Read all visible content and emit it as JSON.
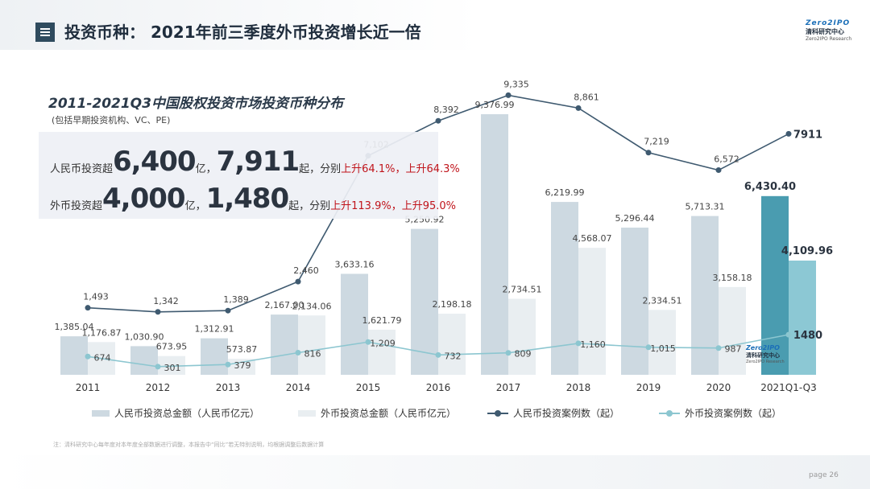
{
  "header": {
    "title": "投资币种： 2021年前三季度外币投资增长近一倍",
    "menu_icon": "menu-icon"
  },
  "logo": {
    "top": "Zero2IPO",
    "mid": "清科研究中心",
    "sub": "Zero2IPO Research"
  },
  "summary": {
    "line1": {
      "prefix": "人民币投资超",
      "big1": "6,400",
      "unit1": "亿，",
      "big2": "7,911",
      "mid": "起，分别",
      "red": "上升64.1%，上升64.3%"
    },
    "line2": {
      "prefix": "外币投资超",
      "big1": "4,000",
      "unit1": "亿，",
      "big2": "1,480",
      "mid": "起，分别",
      "red": "上升113.9%，上升95.0%"
    }
  },
  "footnote": "注：清科研究中心每年度对本年度全部数据进行调整，本报告中“同比”若无特别说明，均根据调整后数据计算",
  "page": "page 26",
  "colors": {
    "rmb_bar": "#cdd9e1",
    "fx_bar": "#e9eef1",
    "rmb_bar_highlight": "#4a9cb0",
    "fx_bar_highlight": "#8cc8d4",
    "rmb_line": "#3f5a70",
    "fx_line": "#8cc6d0",
    "highlight_text": "#c0141b"
  },
  "chart_data": {
    "type": "bar",
    "title": "2011-2021Q3中国股权投资市场投资币种分布",
    "subtitle": "(包括早期投资机构、VC、PE)",
    "categories": [
      "2011",
      "2012",
      "2013",
      "2014",
      "2015",
      "2016",
      "2017",
      "2018",
      "2019",
      "2020",
      "2021Q1-Q3"
    ],
    "series": [
      {
        "name": "人民币投资总金额（人民币亿元）",
        "kind": "bar",
        "values": [
          1385.04,
          1030.9,
          1312.91,
          2167.0,
          3633.16,
          5250.92,
          9376.99,
          6219.99,
          5296.44,
          5713.31,
          6430.4
        ],
        "labels": [
          "1,385.04",
          "1,030.90",
          "1,312.91",
          "2,167.00",
          "3,633.16",
          "5,250.92",
          "9,376.99",
          "6,219.99",
          "5,296.44",
          "5,713.31",
          "6,430.40"
        ]
      },
      {
        "name": "外币投资总金额（人民币亿元）",
        "kind": "bar",
        "values": [
          1176.87,
          673.95,
          573.87,
          2134.06,
          1621.79,
          2198.18,
          2734.51,
          4568.07,
          2334.51,
          3158.18,
          4109.96
        ],
        "labels": [
          "1,176.87",
          "673.95",
          "573.87",
          "2,134.06",
          "1,621.79",
          "2,198.18",
          "2,734.51",
          "4,568.07",
          "2,334.51",
          "3,158.18",
          "4,109.96"
        ]
      },
      {
        "name": "人民币投资案例数（起）",
        "kind": "line",
        "values": [
          1493,
          1342,
          1389,
          2460,
          7102,
          8392,
          9335,
          8861,
          7219,
          6572,
          7911
        ],
        "labels": [
          "1,493",
          "1,342",
          "1,389",
          "2,460",
          "7,102",
          "8,392",
          "9,335",
          "8,861",
          "7,219",
          "6,572",
          "7911"
        ]
      },
      {
        "name": "外币投资案例数（起）",
        "kind": "line",
        "values": [
          674,
          301,
          379,
          816,
          1209,
          732,
          809,
          1160,
          1015,
          987,
          1480
        ],
        "labels": [
          "674",
          "301",
          "379",
          "816",
          "1,209",
          "732",
          "809",
          "1,160",
          "1,015",
          "987",
          "1480"
        ]
      }
    ],
    "legend": "bottom",
    "grid": false
  }
}
